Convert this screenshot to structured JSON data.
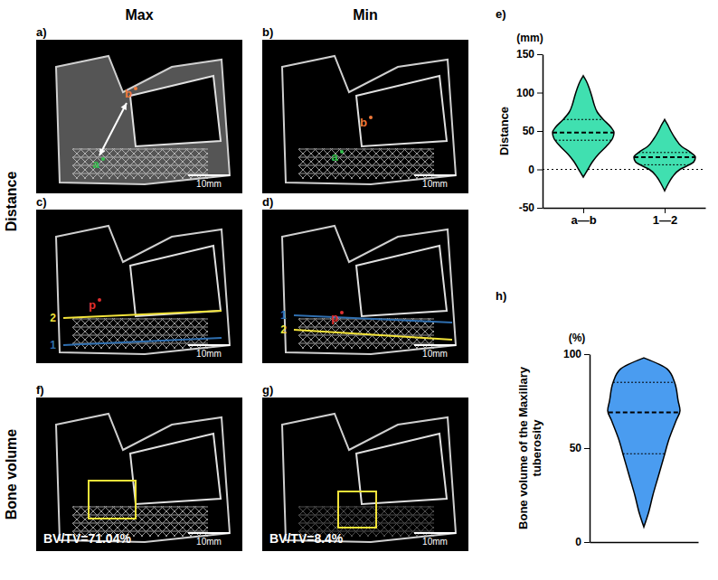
{
  "figure": {
    "columns": [
      "Max",
      "Min"
    ],
    "rows": [
      "Distance",
      "Bone volume"
    ],
    "panels": [
      {
        "label": "a)",
        "scale_bar": "10mm",
        "points": [
          {
            "text": "a",
            "color": "#33c24d"
          },
          {
            "text": "b",
            "color": "#f07a3a"
          }
        ],
        "arrow": true
      },
      {
        "label": "b)",
        "scale_bar": "10mm",
        "points": [
          {
            "text": "a",
            "color": "#33c24d"
          },
          {
            "text": "b",
            "color": "#f07a3a"
          }
        ]
      },
      {
        "label": "c)",
        "scale_bar": "10mm",
        "lines": [
          {
            "text": "2",
            "color": "#f2e33a"
          },
          {
            "text": "1",
            "color": "#2f6fb0"
          }
        ],
        "points": [
          {
            "text": "p",
            "color": "#e03030"
          }
        ]
      },
      {
        "label": "d)",
        "scale_bar": "10mm",
        "lines": [
          {
            "text": "2",
            "color": "#f2e33a"
          },
          {
            "text": "1",
            "color": "#2f6fb0"
          }
        ],
        "points": [
          {
            "text": "p",
            "color": "#e03030"
          }
        ]
      },
      {
        "label": "f)",
        "scale_bar": "10mm",
        "roi": {
          "color": "#f2e33a",
          "text": "BV/TV=71.04%"
        }
      },
      {
        "label": "g)",
        "scale_bar": "10mm",
        "roi": {
          "color": "#f2e33a",
          "text": "BV/TV=8.4%"
        }
      }
    ]
  },
  "chart_data": [
    {
      "type": "violin",
      "panel_label": "e)",
      "y_label": "Distance",
      "unit": "(mm)",
      "categories": [
        "a—b",
        "1—2"
      ],
      "color": "#40e0b0",
      "ylim": [
        -50,
        150
      ],
      "yticks": [
        -50,
        0,
        50,
        100,
        150
      ],
      "reference_lines": [
        0
      ],
      "grid": false,
      "median": [
        48,
        16
      ],
      "q1": [
        38,
        6
      ],
      "q3": [
        65,
        22
      ],
      "profile_y": [
        [
          -10,
          0,
          10,
          20,
          30,
          40,
          48,
          55,
          65,
          75,
          85,
          95,
          105,
          115,
          122
        ],
        [
          -28,
          -20,
          -10,
          0,
          5,
          10,
          16,
          22,
          30,
          40,
          50,
          58,
          65
        ]
      ],
      "profile_width": [
        [
          0,
          0.15,
          0.3,
          0.5,
          0.75,
          0.95,
          1,
          0.9,
          0.65,
          0.45,
          0.35,
          0.28,
          0.2,
          0.1,
          0
        ],
        [
          0,
          0.1,
          0.25,
          0.5,
          0.75,
          0.95,
          1,
          0.85,
          0.55,
          0.35,
          0.2,
          0.1,
          0
        ]
      ]
    },
    {
      "type": "violin",
      "panel_label": "h)",
      "y_label": "Bone volume of the Maxillary tuberosity",
      "unit": "(%)",
      "color": "#4a9cf0",
      "ylim": [
        0,
        100
      ],
      "yticks": [
        0,
        50,
        100
      ],
      "grid": false,
      "tick_labels": "y",
      "median": [
        69
      ],
      "q1": [
        47
      ],
      "q3": [
        85
      ],
      "profile_y": [
        [
          8,
          15,
          25,
          35,
          45,
          55,
          65,
          70,
          75,
          85,
          92,
          98
        ]
      ],
      "profile_width": [
        [
          0,
          0.12,
          0.25,
          0.4,
          0.55,
          0.7,
          0.9,
          1,
          0.95,
          0.85,
          0.65,
          0
        ]
      ]
    }
  ]
}
